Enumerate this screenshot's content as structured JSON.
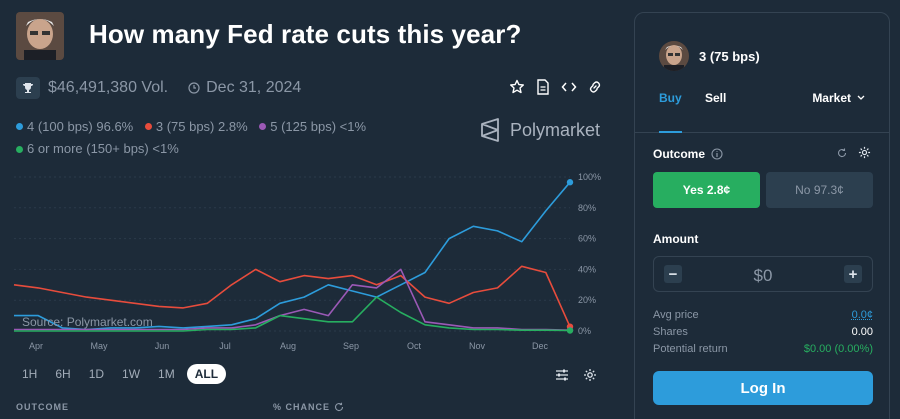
{
  "market": {
    "title": "How many Fed rate cuts this year?",
    "volume": "$46,491,380 Vol.",
    "end_date": "Dec 31, 2024",
    "brand": "Polymarket"
  },
  "legend": [
    {
      "label": "4 (100 bps) 96.6%",
      "color": "#2d9cdb"
    },
    {
      "label": "3 (75 bps) 2.8%",
      "color": "#e74c3c"
    },
    {
      "label": "5 (125 bps) <1%",
      "color": "#9b59b6"
    },
    {
      "label": "6 or more (150+ bps) <1%",
      "color": "#27ae60"
    }
  ],
  "chart": {
    "source_label": "Source: Polymarket.com",
    "y_ticks": [
      "100%",
      "80%",
      "60%",
      "40%",
      "20%",
      "0%"
    ],
    "x_ticks": [
      "Apr",
      "May",
      "Jun",
      "Jul",
      "Aug",
      "Sep",
      "Oct",
      "Nov",
      "Dec"
    ]
  },
  "chart_data": {
    "type": "line",
    "x": [
      "Mar 20",
      "Apr 1",
      "Apr 15",
      "May 1",
      "May 15",
      "Jun 1",
      "Jun 15",
      "Jul 1",
      "Jul 15",
      "Jul 25",
      "Aug 1",
      "Aug 5",
      "Aug 15",
      "Sep 1",
      "Sep 10",
      "Sep 18",
      "Sep 25",
      "Oct 1",
      "Oct 15",
      "Nov 1",
      "Nov 15",
      "Dec 1",
      "Dec 10",
      "Dec 15"
    ],
    "ylim": [
      0,
      100
    ],
    "series": [
      {
        "name": "4 (100 bps)",
        "color": "#2d9cdb",
        "values": [
          10,
          10,
          2,
          1,
          2,
          2,
          3,
          2,
          3,
          4,
          8,
          18,
          22,
          30,
          26,
          22,
          30,
          38,
          60,
          68,
          65,
          58,
          78,
          96.6
        ]
      },
      {
        "name": "3 (75 bps)",
        "color": "#e74c3c",
        "values": [
          30,
          28,
          25,
          22,
          20,
          18,
          16,
          15,
          18,
          30,
          40,
          32,
          36,
          34,
          36,
          30,
          36,
          22,
          18,
          25,
          28,
          42,
          38,
          2.8
        ]
      },
      {
        "name": "5 (125 bps)",
        "color": "#9b59b6",
        "values": [
          1,
          1,
          1,
          1,
          1,
          1,
          1,
          1,
          2,
          2,
          4,
          10,
          14,
          10,
          30,
          28,
          40,
          6,
          4,
          2,
          2,
          1,
          1,
          0.5
        ]
      },
      {
        "name": "6 or more (150+ bps)",
        "color": "#27ae60",
        "values": [
          0,
          0,
          0,
          0,
          0,
          0,
          0,
          0,
          1,
          1,
          2,
          10,
          8,
          6,
          6,
          22,
          12,
          4,
          2,
          1,
          1,
          0.5,
          0.5,
          0.3
        ]
      }
    ]
  },
  "ranges": [
    {
      "label": "1H",
      "active": false
    },
    {
      "label": "6H",
      "active": false
    },
    {
      "label": "1D",
      "active": false
    },
    {
      "label": "1W",
      "active": false
    },
    {
      "label": "1M",
      "active": false
    },
    {
      "label": "ALL",
      "active": true
    }
  ],
  "table": {
    "col_outcome": "OUTCOME",
    "col_chance": "% CHANCE"
  },
  "panel": {
    "outcome_name": "3 (75 bps)",
    "tab_buy": "Buy",
    "tab_sell": "Sell",
    "order_type": "Market",
    "outcome_label": "Outcome",
    "yes_label": "Yes 2.8¢",
    "no_label": "No 97.3¢",
    "amount_label": "Amount",
    "amount_value": "$0",
    "avg_price_label": "Avg price",
    "avg_price_value": "0.0¢",
    "shares_label": "Shares",
    "shares_value": "0.00",
    "potential_label": "Potential return",
    "potential_value": "$0.00 (0.00%)",
    "login_label": "Log In"
  }
}
